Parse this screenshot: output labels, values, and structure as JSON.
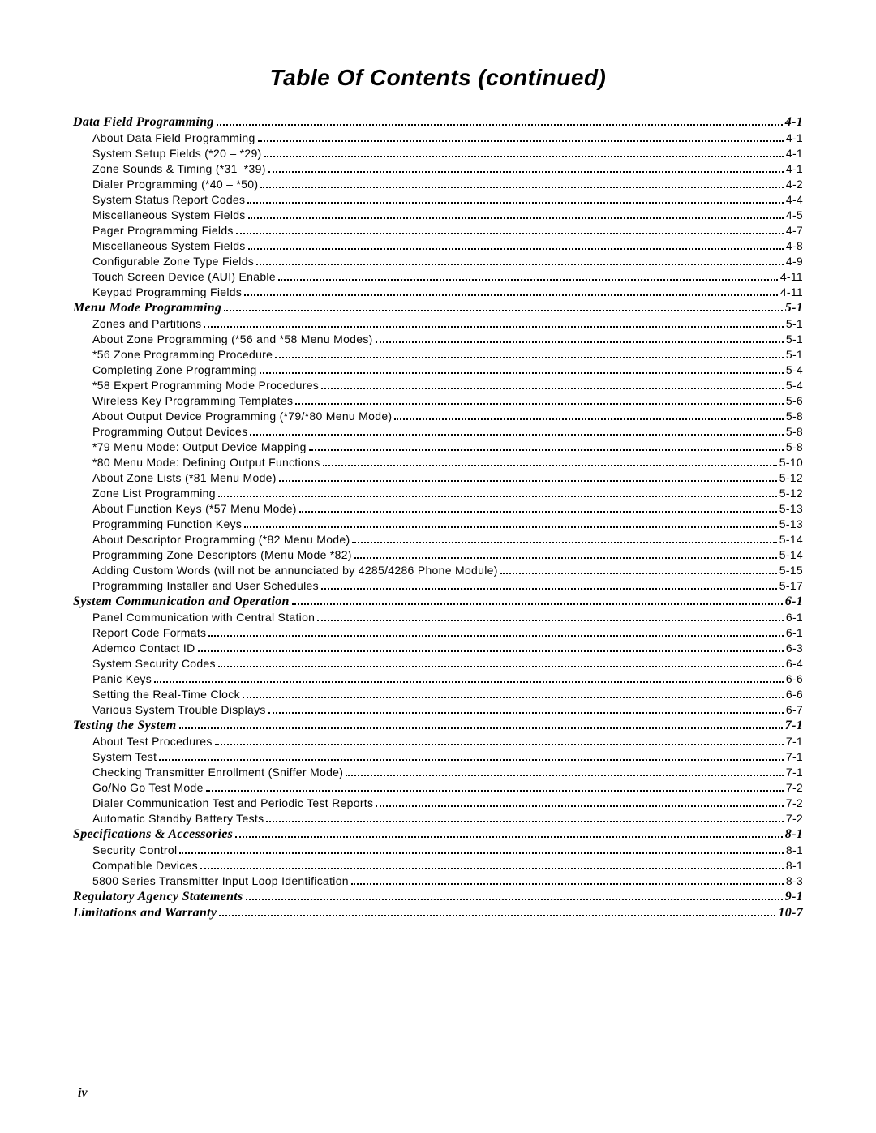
{
  "title": "Table Of Contents (continued)",
  "footer": "iv",
  "sections": [
    {
      "heading": "Data Field Programming",
      "page": "4-1",
      "items": [
        {
          "label": "About Data Field Programming",
          "page": "4-1"
        },
        {
          "label": "System Setup Fields (*20 – *29)",
          "page": "4-1"
        },
        {
          "label": "Zone Sounds & Timing (*31–*39)",
          "page": "4-1"
        },
        {
          "label": "Dialer Programming (*40 – *50)",
          "page": "4-2"
        },
        {
          "label": "System Status Report Codes",
          "page": "4-4"
        },
        {
          "label": "Miscellaneous System Fields",
          "page": "4-5"
        },
        {
          "label": "Pager Programming Fields",
          "page": "4-7"
        },
        {
          "label": "Miscellaneous System Fields",
          "page": "4-8"
        },
        {
          "label": "Configurable Zone Type Fields",
          "page": "4-9"
        },
        {
          "label": "Touch Screen Device (AUI) Enable",
          "page": "4-11"
        },
        {
          "label": "Keypad Programming Fields",
          "page": "4-11"
        }
      ]
    },
    {
      "heading": "Menu Mode Programming",
      "page": "5-1",
      "items": [
        {
          "label": "Zones and Partitions",
          "page": "5-1"
        },
        {
          "label": "About Zone Programming (*56 and *58 Menu Modes)",
          "page": "5-1"
        },
        {
          "label": "*56 Zone Programming Procedure",
          "page": "5-1"
        },
        {
          "label": "Completing Zone Programming",
          "page": "5-4"
        },
        {
          "label": "*58 Expert Programming Mode Procedures",
          "page": "5-4"
        },
        {
          "label": "Wireless Key Programming Templates",
          "page": "5-6"
        },
        {
          "label": "About Output Device Programming (*79/*80 Menu Mode)",
          "page": "5-8"
        },
        {
          "label": "Programming Output Devices",
          "page": "5-8"
        },
        {
          "label": "*79 Menu Mode: Output Device Mapping",
          "page": "5-8"
        },
        {
          "label": "*80 Menu Mode: Defining Output Functions",
          "page": "5-10"
        },
        {
          "label": "About Zone Lists (*81 Menu Mode)",
          "page": "5-12"
        },
        {
          "label": "Zone List Programming",
          "page": "5-12"
        },
        {
          "label": "About Function Keys (*57 Menu Mode)",
          "page": "5-13"
        },
        {
          "label": "Programming Function Keys",
          "page": "5-13"
        },
        {
          "label": "About Descriptor Programming (*82 Menu Mode)",
          "page": "5-14"
        },
        {
          "label": "Programming Zone Descriptors (Menu Mode *82)",
          "page": "5-14"
        },
        {
          "label": "Adding Custom Words (will not be annunciated by 4285/4286 Phone Module)",
          "page": "5-15"
        },
        {
          "label": "Programming Installer and User Schedules",
          "page": "5-17"
        }
      ]
    },
    {
      "heading": "System Communication and Operation",
      "page": "6-1",
      "items": [
        {
          "label": "Panel Communication with Central Station",
          "page": "6-1"
        },
        {
          "label": "Report Code Formats",
          "page": "6-1"
        },
        {
          "label": "Ademco Contact ID",
          "page": "6-3"
        },
        {
          "label": "System Security Codes",
          "page": "6-4"
        },
        {
          "label": "Panic Keys",
          "page": "6-6"
        },
        {
          "label": "Setting the Real-Time Clock",
          "page": "6-6"
        },
        {
          "label": "Various System Trouble Displays",
          "page": "6-7"
        }
      ]
    },
    {
      "heading": "Testing the System",
      "page": "7-1",
      "items": [
        {
          "label": "About Test Procedures",
          "page": "7-1"
        },
        {
          "label": "System Test",
          "page": "7-1"
        },
        {
          "label": "Checking Transmitter Enrollment (Sniffer Mode)",
          "page": "7-1"
        },
        {
          "label": "Go/No Go Test Mode",
          "page": "7-2"
        },
        {
          "label": "Dialer Communication Test and Periodic Test Reports",
          "page": "7-2"
        },
        {
          "label": "Automatic Standby Battery Tests",
          "page": "7-2"
        }
      ]
    },
    {
      "heading": "Specifications & Accessories",
      "page": "8-1",
      "items": [
        {
          "label": "Security Control",
          "page": "8-1"
        },
        {
          "label": "Compatible Devices",
          "page": "8-1"
        },
        {
          "label": "5800 Series Transmitter Input Loop Identification",
          "page": "8-3"
        }
      ]
    },
    {
      "heading": "Regulatory Agency Statements",
      "page": "9-1",
      "items": []
    },
    {
      "heading": "Limitations and Warranty",
      "page": "10-7",
      "items": []
    }
  ]
}
